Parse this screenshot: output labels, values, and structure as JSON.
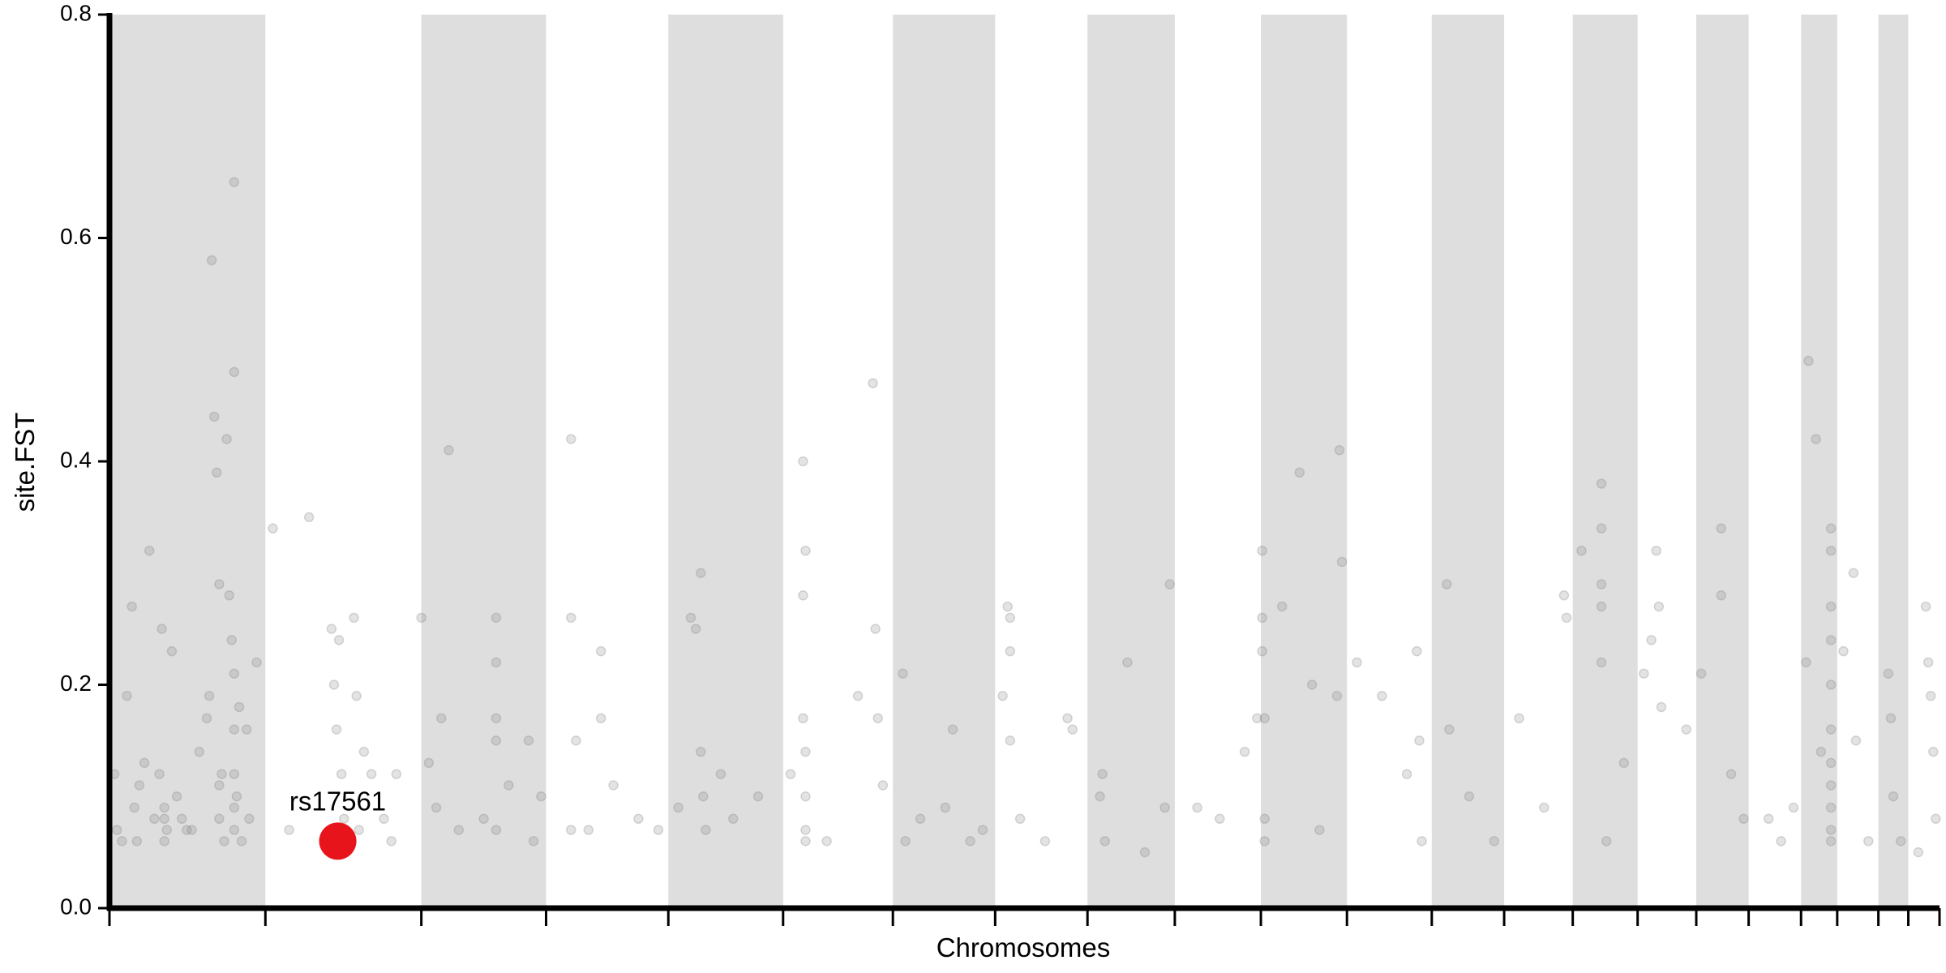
{
  "chart_data": {
    "type": "scatter",
    "x_label": "Chromosomes",
    "y_label": "site.FST",
    "xlim": [
      0,
      1467
    ],
    "xticks": [
      0,
      125,
      250,
      350,
      448,
      540,
      628,
      710,
      784,
      854,
      923,
      992,
      1060,
      1118,
      1173,
      1225,
      1272,
      1314,
      1356,
      1385,
      1418,
      1442,
      1467
    ],
    "ylim": [
      0,
      0.8
    ],
    "yticks": [
      {
        "value": 0,
        "label": "0.0"
      },
      0.2,
      0.4,
      0.6,
      0.8
    ],
    "band_color": "#dedede",
    "color": "#808080",
    "point_opacity": 0.22,
    "x": [
      4,
      6,
      10,
      14,
      18,
      20,
      24,
      28,
      32,
      36,
      40,
      42,
      44,
      46,
      50,
      54,
      58,
      62,
      72,
      78,
      80,
      82,
      84,
      86,
      88,
      90,
      92,
      94,
      96,
      98,
      100,
      100,
      100,
      100,
      100,
      100,
      100,
      102,
      104,
      106,
      110,
      112,
      118,
      44,
      44,
      88,
      88,
      22,
      66,
      131,
      144,
      160,
      178,
      180,
      182,
      184,
      186,
      188,
      196,
      198,
      204,
      210,
      220,
      226,
      230,
      200,
      250,
      256,
      262,
      266,
      272,
      280,
      300,
      310,
      310,
      310,
      310,
      310,
      320,
      336,
      340,
      346,
      370,
      370,
      370,
      374,
      384,
      394,
      394,
      404,
      424,
      440,
      456,
      466,
      470,
      474,
      474,
      476,
      478,
      490,
      500,
      520,
      546,
      556,
      556,
      556,
      558,
      558,
      558,
      558,
      558,
      575,
      600,
      612,
      614,
      616,
      620,
      636,
      638,
      650,
      670,
      676,
      690,
      700,
      716,
      720,
      722,
      722,
      722,
      730,
      750,
      768,
      772,
      794,
      796,
      798,
      816,
      850,
      830,
      846,
      872,
      890,
      910,
      920,
      924,
      924,
      924,
      926,
      926,
      926,
      940,
      954,
      964,
      970,
      984,
      986,
      988,
      1000,
      1020,
      1040,
      1048,
      1050,
      1052,
      1072,
      1074,
      1090,
      1110,
      1130,
      1150,
      1166,
      1168,
      1180,
      1196,
      1196,
      1196,
      1196,
      1196,
      1200,
      1214,
      1230,
      1236,
      1240,
      1242,
      1244,
      1264,
      1276,
      1292,
      1292,
      1300,
      1310,
      1330,
      1350,
      1340,
      1362,
      1360,
      1368,
      1380,
      1380,
      1380,
      1380,
      1380,
      1380,
      1380,
      1380,
      1380,
      1380,
      1380,
      1372,
      1390,
      1398,
      1400,
      1410,
      1426,
      1428,
      1430,
      1436,
      1456,
      1458,
      1460,
      1462,
      1464,
      1450
    ],
    "values": [
      0.12,
      0.07,
      0.06,
      0.19,
      0.27,
      0.09,
      0.11,
      0.13,
      0.32,
      0.08,
      0.12,
      0.25,
      0.06,
      0.07,
      0.23,
      0.1,
      0.08,
      0.07,
      0.14,
      0.17,
      0.19,
      0.58,
      0.44,
      0.39,
      0.29,
      0.12,
      0.06,
      0.42,
      0.28,
      0.24,
      0.65,
      0.48,
      0.21,
      0.16,
      0.12,
      0.09,
      0.07,
      0.1,
      0.18,
      0.06,
      0.16,
      0.08,
      0.22,
      0.09,
      0.08,
      0.11,
      0.08,
      0.06,
      0.07,
      0.34,
      0.07,
      0.35,
      0.25,
      0.2,
      0.16,
      0.24,
      0.12,
      0.08,
      0.26,
      0.19,
      0.14,
      0.12,
      0.08,
      0.06,
      0.12,
      0.07,
      0.26,
      0.13,
      0.09,
      0.17,
      0.41,
      0.07,
      0.08,
      0.26,
      0.22,
      0.17,
      0.15,
      0.07,
      0.11,
      0.15,
      0.06,
      0.1,
      0.42,
      0.26,
      0.07,
      0.15,
      0.07,
      0.23,
      0.17,
      0.11,
      0.08,
      0.07,
      0.09,
      0.26,
      0.25,
      0.3,
      0.14,
      0.1,
      0.07,
      0.12,
      0.08,
      0.1,
      0.12,
      0.4,
      0.28,
      0.17,
      0.32,
      0.14,
      0.1,
      0.07,
      0.06,
      0.06,
      0.19,
      0.47,
      0.25,
      0.17,
      0.11,
      0.21,
      0.06,
      0.08,
      0.09,
      0.16,
      0.06,
      0.07,
      0.19,
      0.27,
      0.26,
      0.23,
      0.15,
      0.08,
      0.06,
      0.17,
      0.16,
      0.1,
      0.12,
      0.06,
      0.22,
      0.29,
      0.05,
      0.09,
      0.09,
      0.08,
      0.14,
      0.17,
      0.32,
      0.26,
      0.23,
      0.17,
      0.08,
      0.06,
      0.27,
      0.39,
      0.2,
      0.07,
      0.19,
      0.41,
      0.31,
      0.22,
      0.19,
      0.12,
      0.23,
      0.15,
      0.06,
      0.29,
      0.16,
      0.1,
      0.06,
      0.17,
      0.09,
      0.28,
      0.26,
      0.32,
      0.38,
      0.34,
      0.29,
      0.27,
      0.22,
      0.06,
      0.13,
      0.21,
      0.24,
      0.32,
      0.27,
      0.18,
      0.16,
      0.21,
      0.34,
      0.28,
      0.12,
      0.08,
      0.08,
      0.09,
      0.06,
      0.49,
      0.22,
      0.42,
      0.34,
      0.32,
      0.27,
      0.24,
      0.2,
      0.16,
      0.13,
      0.11,
      0.09,
      0.07,
      0.06,
      0.14,
      0.23,
      0.3,
      0.15,
      0.06,
      0.21,
      0.17,
      0.1,
      0.06,
      0.27,
      0.22,
      0.19,
      0.14,
      0.08,
      0.05
    ],
    "highlight": {
      "label": "rs17561",
      "x": 183,
      "value": 0.06,
      "color": "#e8141c"
    }
  }
}
